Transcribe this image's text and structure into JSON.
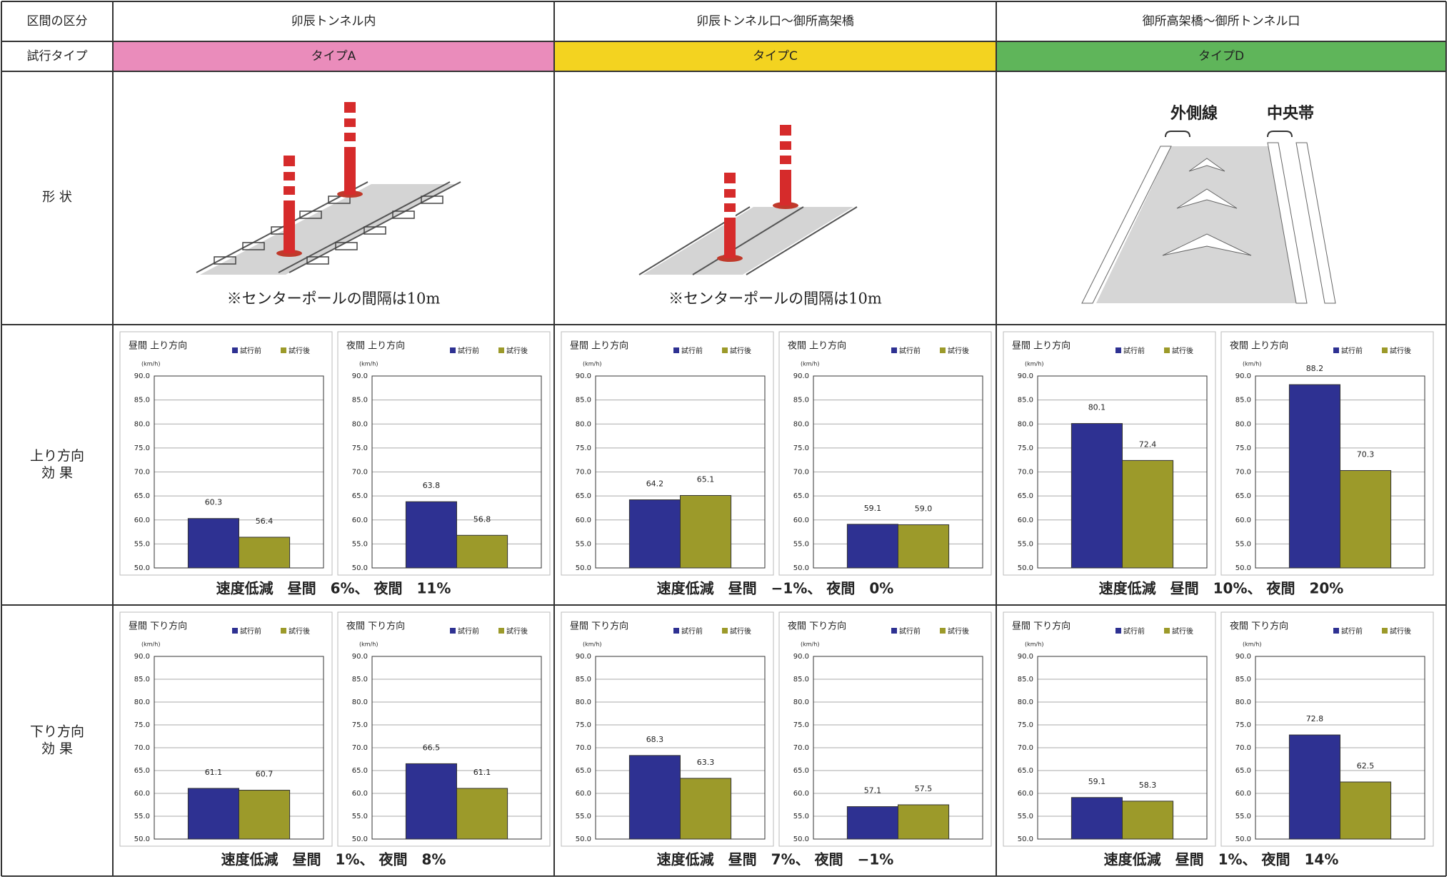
{
  "header": {
    "label": "区間の区分",
    "sections": [
      "卯辰トンネル内",
      "卯辰トンネル口～御所高架橋",
      "御所高架橋～御所トンネル口"
    ]
  },
  "trial_type": {
    "label": "試行タイプ",
    "types": [
      "タイプA",
      "タイプC",
      "タイプD"
    ],
    "colors": [
      "#ea8cbb",
      "#f3d320",
      "#5fb55a"
    ]
  },
  "shape": {
    "label": "形 状",
    "captions": [
      "※センターポールの間隔は10m",
      "※センターポールの間隔は10m"
    ],
    "markers": [
      "外側線",
      "中央帯"
    ]
  },
  "chart_axis": {
    "type": "bar",
    "unit": "(km/h)",
    "series": [
      {
        "name": "試行前",
        "color": "#2e3192"
      },
      {
        "name": "試行後",
        "color": "#9c9a2a"
      }
    ],
    "ylim": [
      50,
      90
    ],
    "yticks": [
      {
        "value": 50,
        "label": "50.0"
      },
      {
        "value": 55,
        "label": "55.0"
      },
      {
        "value": 60,
        "label": "60.0"
      },
      {
        "value": 65,
        "label": "65.0"
      },
      {
        "value": 70,
        "label": "70.0"
      },
      {
        "value": 75,
        "label": "75.0"
      },
      {
        "value": 80,
        "label": "80.0"
      },
      {
        "value": 85,
        "label": "85.0"
      },
      {
        "value": 90,
        "label": "90.0"
      }
    ],
    "grid": true
  },
  "effects": [
    {
      "label": [
        "上り方向",
        "効 果"
      ],
      "cells": [
        {
          "charts": [
            {
              "title": "昼間 上り方向",
              "values": [
                60.3,
                56.4
              ],
              "value_labels": [
                "60.3",
                "56.4"
              ]
            },
            {
              "title": "夜間 上り方向",
              "values": [
                63.8,
                56.8
              ],
              "value_labels": [
                "63.8",
                "56.8"
              ]
            }
          ],
          "summary": "速度低減　昼間　6%、 夜間　11%"
        },
        {
          "charts": [
            {
              "title": "昼間 上り方向",
              "values": [
                64.2,
                65.1
              ],
              "value_labels": [
                "64.2",
                "65.1"
              ]
            },
            {
              "title": "夜間 上り方向",
              "values": [
                59.1,
                59.0
              ],
              "value_labels": [
                "59.1",
                "59.0"
              ]
            }
          ],
          "summary": "速度低減　昼間　−1%、 夜間　0%"
        },
        {
          "charts": [
            {
              "title": "昼間 上り方向",
              "values": [
                80.1,
                72.4
              ],
              "value_labels": [
                "80.1",
                "72.4"
              ]
            },
            {
              "title": "夜間 上り方向",
              "values": [
                88.2,
                70.3
              ],
              "value_labels": [
                "88.2",
                "70.3"
              ]
            }
          ],
          "summary": "速度低減　昼間　10%、 夜間　20%"
        }
      ]
    },
    {
      "label": [
        "下り方向",
        "効 果"
      ],
      "cells": [
        {
          "charts": [
            {
              "title": "昼間 下り方向",
              "values": [
                61.1,
                60.7
              ],
              "value_labels": [
                "61.1",
                "60.7"
              ]
            },
            {
              "title": "夜間 下り方向",
              "values": [
                66.5,
                61.1
              ],
              "value_labels": [
                "66.5",
                "61.1"
              ]
            }
          ],
          "summary": "速度低減　昼間　1%、 夜間　8%"
        },
        {
          "charts": [
            {
              "title": "昼間 下り方向",
              "values": [
                68.3,
                63.3
              ],
              "value_labels": [
                "68.3",
                "63.3"
              ]
            },
            {
              "title": "夜間 下り方向",
              "values": [
                57.1,
                57.5
              ],
              "value_labels": [
                "57.1",
                "57.5"
              ]
            }
          ],
          "summary": "速度低減　昼間　7%、 夜間　−1%"
        },
        {
          "charts": [
            {
              "title": "昼間 下り方向",
              "values": [
                59.1,
                58.3
              ],
              "value_labels": [
                "59.1",
                "58.3"
              ]
            },
            {
              "title": "夜間 下り方向",
              "values": [
                72.8,
                62.5
              ],
              "value_labels": [
                "72.8",
                "62.5"
              ]
            }
          ],
          "summary": "速度低減　昼間　1%、 夜間　14%"
        }
      ]
    }
  ]
}
